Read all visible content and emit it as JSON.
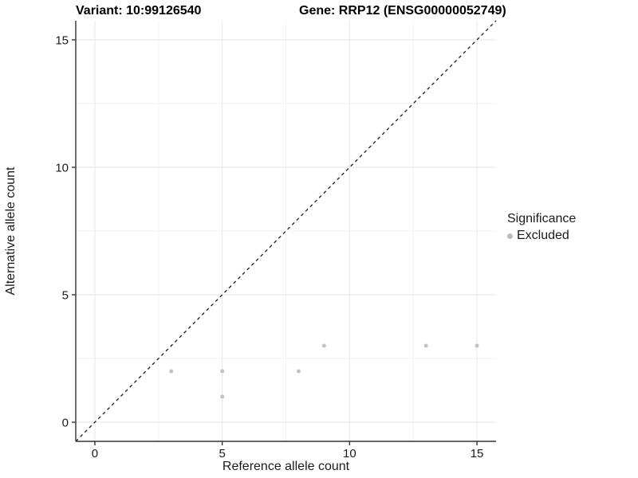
{
  "header": {
    "variant_title": "Variant: 10:99126540",
    "gene_title": "Gene: RRP12 (ENSG00000052749)"
  },
  "legend": {
    "title": "Significance",
    "items": [
      {
        "label": "Excluded",
        "color": "#bdbdbd",
        "marker": "circle"
      }
    ]
  },
  "colors": {
    "background": "#ffffff",
    "point": "#c2c2c2",
    "axis_line": "#333333",
    "tick_mark": "#333333",
    "tick_label": "#1a1a1a",
    "grid_major": "#e6e6e6",
    "grid_minor": "#f2f2f2",
    "identity_line": "#1a1a1a"
  },
  "chart_data": {
    "type": "scatter",
    "title": "",
    "xlabel": "Reference allele count",
    "ylabel": "Alternative allele count",
    "xlim": [
      -0.75,
      15.75
    ],
    "ylim": [
      -0.75,
      15.75
    ],
    "x_ticks": [
      0,
      5,
      10,
      15
    ],
    "y_ticks": [
      0,
      5,
      10,
      15
    ],
    "x_minor_ticks": [
      2.5,
      7.5,
      12.5
    ],
    "y_minor_ticks": [
      2.5,
      7.5,
      12.5
    ],
    "grid": true,
    "legend_position": "right",
    "identity_line": {
      "style": "dashed",
      "from": [
        -0.75,
        -0.75
      ],
      "to": [
        15.75,
        15.75
      ]
    },
    "series": [
      {
        "name": "Excluded",
        "color": "#c2c2c2",
        "points": [
          {
            "x": 3,
            "y": 2
          },
          {
            "x": 5,
            "y": 1
          },
          {
            "x": 5,
            "y": 2
          },
          {
            "x": 8,
            "y": 2
          },
          {
            "x": 9,
            "y": 3
          },
          {
            "x": 13,
            "y": 3
          },
          {
            "x": 15,
            "y": 3
          }
        ]
      }
    ]
  }
}
